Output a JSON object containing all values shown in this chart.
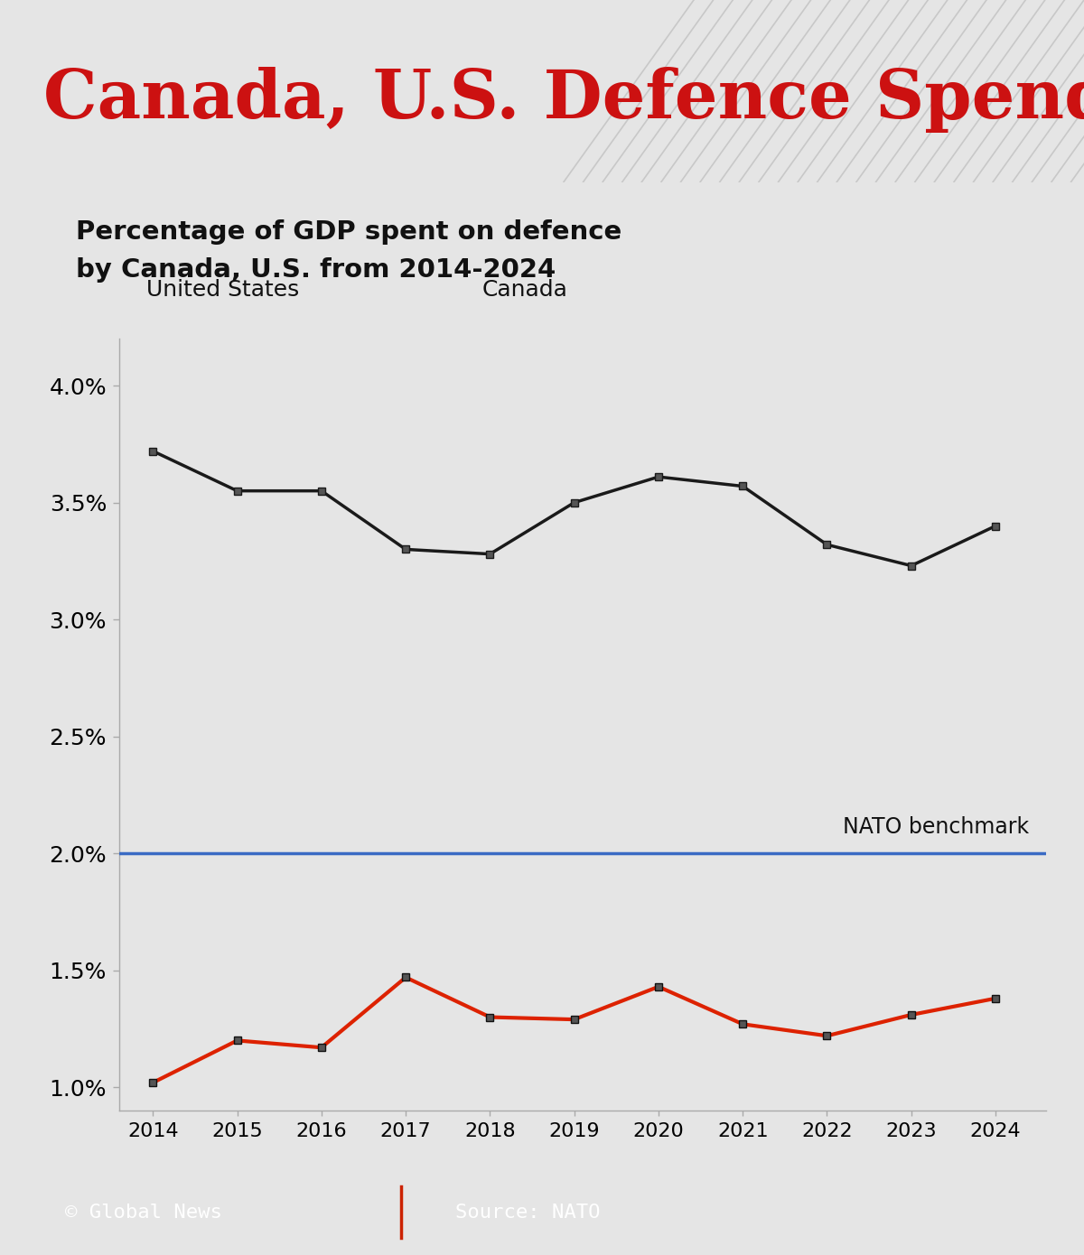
{
  "years": [
    2014,
    2015,
    2016,
    2017,
    2018,
    2019,
    2020,
    2021,
    2022,
    2023,
    2024
  ],
  "us_values": [
    3.72,
    3.55,
    3.55,
    3.3,
    3.28,
    3.5,
    3.61,
    3.57,
    3.32,
    3.23,
    3.4
  ],
  "canada_values": [
    1.02,
    1.2,
    1.17,
    1.47,
    1.3,
    1.29,
    1.43,
    1.27,
    1.22,
    1.31,
    1.38
  ],
  "nato_benchmark": 2.0,
  "title_main": "Canada, U.S. Defence Spending",
  "subtitle_line1": "Percentage of GDP spent on defence",
  "subtitle_line2": "by Canada, U.S. from 2014-2024",
  "legend_us": "United States",
  "legend_canada": "Canada",
  "nato_label": "NATO benchmark",
  "footer_left": "© Global News",
  "footer_right": "Source: NATO",
  "bg_color": "#e5e5e5",
  "chart_bg_color": "#e5e5e5",
  "title_color": "#cc1111",
  "title_box_color": "#ffffff",
  "us_line_color": "#1a1a1a",
  "canada_line_color": "#dd2200",
  "nato_line_color": "#3a6bc4",
  "footer_bg_color": "#1e1e1e",
  "footer_text_color": "#ffffff",
  "ylim_min": 0.9,
  "ylim_max": 4.2,
  "yticks": [
    1.0,
    1.5,
    2.0,
    2.5,
    3.0,
    3.5,
    4.0
  ]
}
